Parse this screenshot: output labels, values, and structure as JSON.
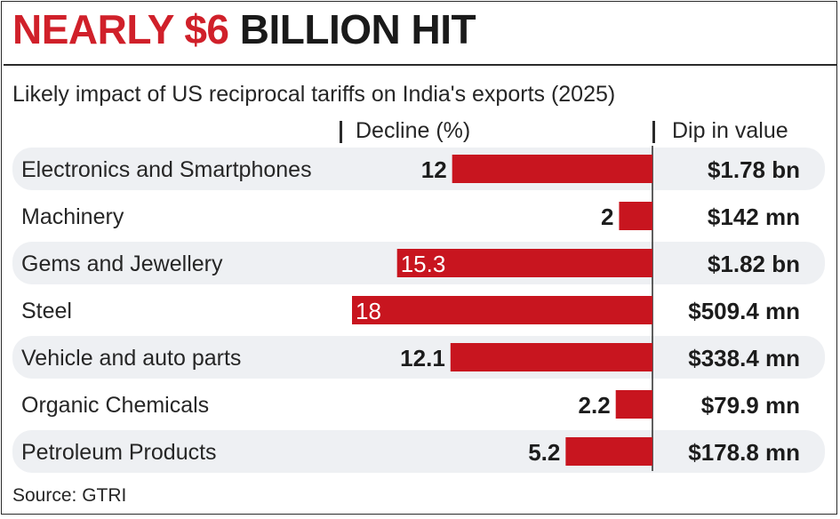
{
  "header": {
    "title_red": "NEARLY $6",
    "title_black": "BILLION HIT",
    "subtitle": "Likely impact of US reciprocal tariffs on India's exports (2025)"
  },
  "columns": {
    "decline": "Decline (%)",
    "dip": "Dip in value"
  },
  "source": "Source: GTRI",
  "chart_data": {
    "type": "bar",
    "orientation": "horizontal",
    "bar_direction": "right-to-left",
    "bar_color": "#c8151f",
    "categories": [
      "Electronics and Smartphones",
      "Machinery",
      "Gems and Jewellery",
      "Steel",
      "Vehicle and auto parts",
      "Organic Chemicals",
      "Petroleum Products"
    ],
    "values": [
      12,
      2,
      15.3,
      18,
      12.1,
      2.2,
      5.2
    ],
    "value_labels": [
      "12",
      "2",
      "15.3",
      "18",
      "12.1",
      "2.2",
      "5.2"
    ],
    "dip_in_value": [
      "$1.78 bn",
      "$142 mn",
      "$1.82 bn",
      "$509.4 mn",
      "$338.4 mn",
      "$79.9 mn",
      "$178.8 mn"
    ],
    "xlim": [
      0,
      18
    ],
    "grid": false
  }
}
